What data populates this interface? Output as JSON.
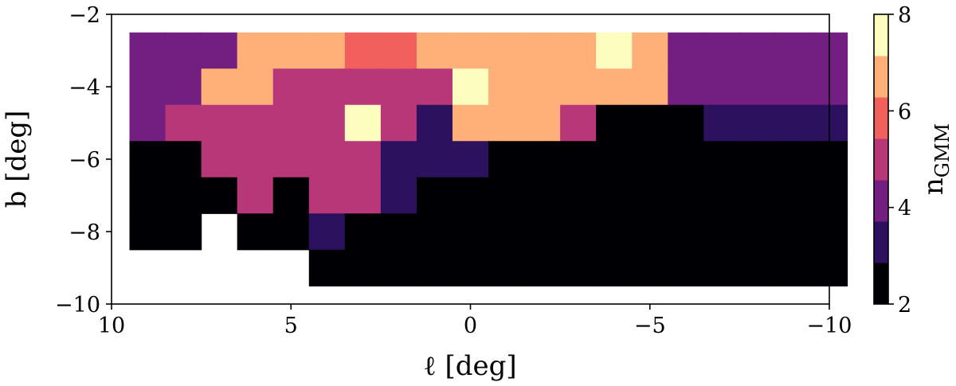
{
  "chart_data": {
    "type": "heatmap",
    "xlabel": "ℓ [deg]",
    "ylabel": "b [deg]",
    "xlim": [
      10,
      -10
    ],
    "ylim": [
      -10,
      -2
    ],
    "xticks": [
      10,
      5,
      0,
      -5,
      -10
    ],
    "yticks": [
      -2,
      -4,
      -6,
      -8,
      -10
    ],
    "cell_width_deg": 1,
    "cell_height_deg": 1,
    "colorbar": {
      "label": "n",
      "label_subscript": "GMM",
      "range": [
        2,
        8
      ],
      "ticks": [
        2,
        4,
        6,
        8
      ],
      "levels": [
        {
          "value": 2,
          "color": "#000004"
        },
        {
          "value": 3,
          "color": "#2c115f"
        },
        {
          "value": 4,
          "color": "#721f81"
        },
        {
          "value": 5,
          "color": "#b73779"
        },
        {
          "value": 6,
          "color": "#f1605d"
        },
        {
          "value": 7,
          "color": "#feb078"
        },
        {
          "value": 8,
          "color": "#fcfdbf"
        }
      ]
    },
    "rows": [
      {
        "b": -3,
        "values": [
          4,
          4,
          4,
          7,
          7,
          7,
          6,
          6,
          7,
          7,
          7,
          7,
          7,
          8,
          7,
          4,
          4,
          4,
          4,
          4
        ]
      },
      {
        "b": -4,
        "values": [
          4,
          4,
          7,
          7,
          5,
          5,
          5,
          5,
          5,
          8,
          7,
          7,
          7,
          7,
          7,
          4,
          4,
          4,
          4,
          4
        ]
      },
      {
        "b": -5,
        "values": [
          4,
          5,
          5,
          5,
          5,
          5,
          8,
          5,
          3,
          7,
          7,
          7,
          5,
          2,
          2,
          2,
          3,
          3,
          3,
          3
        ]
      },
      {
        "b": -6,
        "values": [
          2,
          2,
          5,
          5,
          5,
          5,
          5,
          3,
          3,
          3,
          2,
          2,
          2,
          2,
          2,
          2,
          2,
          2,
          2,
          2
        ]
      },
      {
        "b": -7,
        "values": [
          2,
          2,
          2,
          5,
          2,
          5,
          5,
          3,
          2,
          2,
          2,
          2,
          2,
          2,
          2,
          2,
          2,
          2,
          2,
          2
        ]
      },
      {
        "b": -8,
        "values": [
          2,
          2,
          null,
          2,
          2,
          3,
          2,
          2,
          2,
          2,
          2,
          2,
          2,
          2,
          2,
          2,
          2,
          2,
          2,
          2
        ]
      },
      {
        "b": -9,
        "values": [
          null,
          null,
          null,
          null,
          null,
          2,
          2,
          2,
          2,
          2,
          2,
          2,
          2,
          2,
          2,
          2,
          2,
          2,
          2,
          2
        ]
      }
    ],
    "row_l_start": 9,
    "row_l_step": -1
  }
}
